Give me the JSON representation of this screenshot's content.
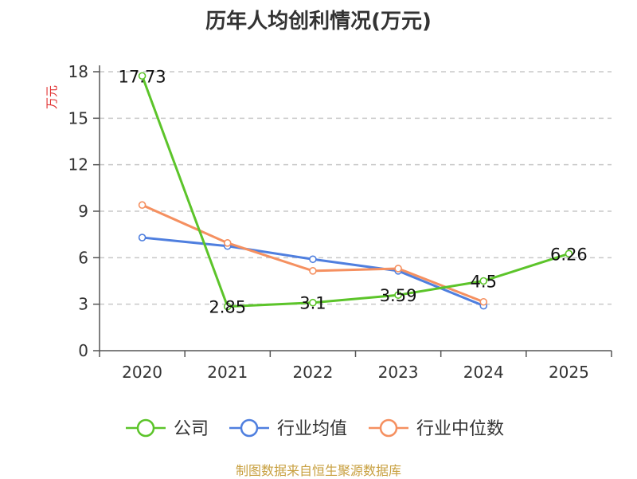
{
  "chart_data": {
    "type": "line",
    "title": "历年人均创利情况(万元)",
    "xlabel": "",
    "ylabel": "万元",
    "categories": [
      "2020",
      "2021",
      "2022",
      "2023",
      "2024",
      "2025"
    ],
    "ylim": [
      0,
      18
    ],
    "yticks": [
      0,
      3,
      6,
      9,
      12,
      15,
      18
    ],
    "grid": true,
    "legend_position": "bottom",
    "series": [
      {
        "name": "公司",
        "color": "#5cc42a",
        "values": [
          17.73,
          2.85,
          3.1,
          3.59,
          4.5,
          6.26
        ],
        "labels": [
          "17.73",
          "2.85",
          "3.1",
          "3.59",
          "4.5",
          "6.26"
        ]
      },
      {
        "name": "行业均值",
        "color": "#4f7fdf",
        "values": [
          7.3,
          6.75,
          5.9,
          5.15,
          2.9,
          null
        ]
      },
      {
        "name": "行业中位数",
        "color": "#f59060",
        "values": [
          9.4,
          6.95,
          5.15,
          5.3,
          3.15,
          null
        ]
      }
    ],
    "source": "制图数据来自恒生聚源数据库"
  }
}
